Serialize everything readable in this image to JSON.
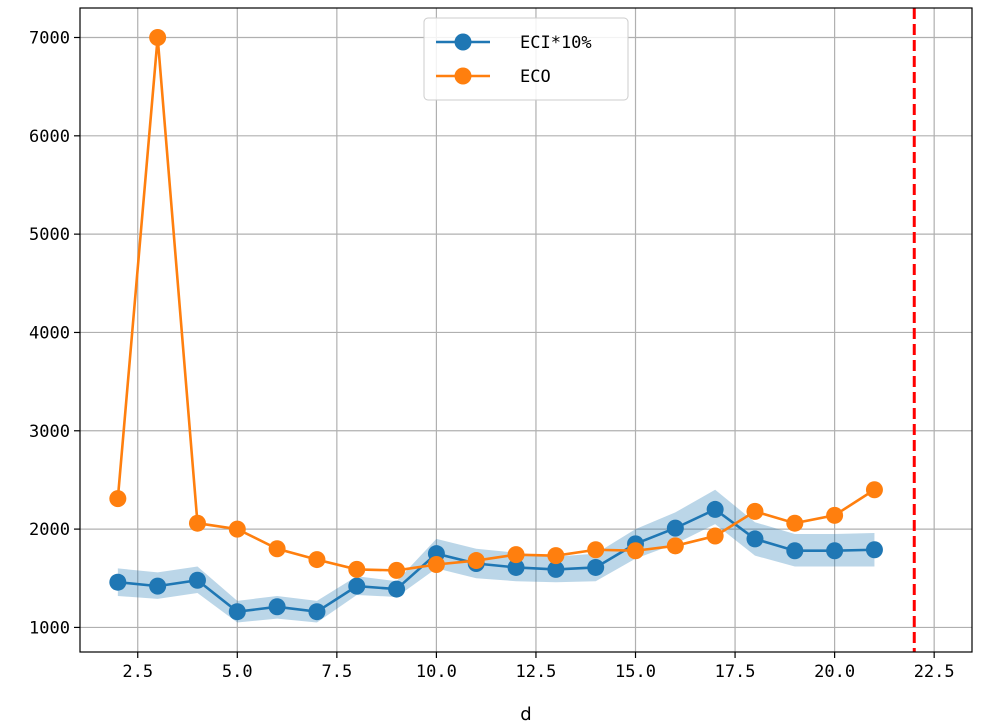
{
  "chart_data": {
    "type": "line",
    "title": "",
    "xlabel": "d",
    "ylabel": "",
    "xlim": [
      1.05,
      23.45
    ],
    "ylim": [
      750,
      7300
    ],
    "xticks": [
      2.5,
      5.0,
      7.5,
      10.0,
      12.5,
      15.0,
      17.5,
      20.0,
      22.5
    ],
    "xtick_labels": [
      "2.5",
      "5.0",
      "7.5",
      "10.0",
      "12.5",
      "15.0",
      "17.5",
      "20.0",
      "22.5"
    ],
    "yticks": [
      1000,
      2000,
      3000,
      4000,
      5000,
      6000,
      7000
    ],
    "ytick_labels": [
      "1000",
      "2000",
      "3000",
      "4000",
      "5000",
      "6000",
      "7000"
    ],
    "grid": true,
    "legend_position": "top-center",
    "series": [
      {
        "name": "ECI*10%",
        "color": "#1f77b4",
        "marker": "circle",
        "x": [
          2,
          3,
          4,
          5,
          6,
          7,
          8,
          9,
          10,
          11,
          12,
          13,
          14,
          15,
          16,
          17,
          18,
          19,
          20,
          21
        ],
        "y": [
          1460,
          1420,
          1480,
          1160,
          1210,
          1160,
          1420,
          1390,
          1750,
          1650,
          1610,
          1590,
          1610,
          1850,
          2010,
          2200,
          1900,
          1780,
          1780,
          1790
        ],
        "band_lower": [
          1320,
          1290,
          1350,
          1050,
          1090,
          1050,
          1330,
          1310,
          1600,
          1500,
          1470,
          1460,
          1470,
          1700,
          1850,
          2050,
          1730,
          1620,
          1620,
          1620
        ],
        "band_upper": [
          1600,
          1560,
          1620,
          1270,
          1320,
          1270,
          1520,
          1470,
          1900,
          1800,
          1760,
          1720,
          1750,
          2000,
          2170,
          2400,
          2070,
          1950,
          1950,
          1960
        ]
      },
      {
        "name": "ECO",
        "color": "#ff7f0e",
        "marker": "circle",
        "x": [
          2,
          3,
          4,
          5,
          6,
          7,
          8,
          9,
          10,
          11,
          12,
          13,
          14,
          15,
          16,
          17,
          18,
          19,
          20,
          21
        ],
        "y": [
          2310,
          7000,
          2060,
          2000,
          1800,
          1690,
          1590,
          1580,
          1640,
          1680,
          1740,
          1730,
          1790,
          1780,
          1830,
          1930,
          2180,
          2060,
          2140,
          2400
        ]
      }
    ],
    "vertical_line": {
      "x": 22,
      "color": "#ff0000",
      "style": "dashed"
    }
  }
}
